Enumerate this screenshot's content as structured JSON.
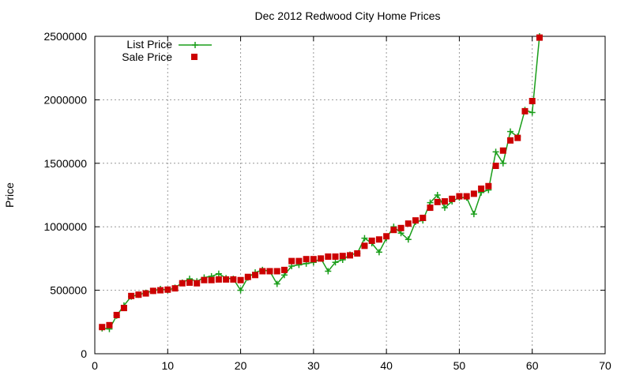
{
  "chart_data": {
    "type": "line",
    "title": "Dec 2012 Redwood City Home Prices",
    "xlabel": "",
    "ylabel": "Price",
    "xlim": [
      0,
      70
    ],
    "ylim": [
      0,
      2500000
    ],
    "xticks": [
      0,
      10,
      20,
      30,
      40,
      50,
      60,
      70
    ],
    "yticks": [
      0,
      500000,
      1000000,
      1500000,
      2000000,
      2500000
    ],
    "grid": true,
    "legend_position": "top-left",
    "colors": {
      "list": "#1a9e1a",
      "sale": "#cc0000",
      "grid": "#999999"
    },
    "series": [
      {
        "name": "List Price",
        "style": "line-plus",
        "x": [
          1,
          2,
          3,
          4,
          5,
          6,
          7,
          8,
          9,
          10,
          11,
          12,
          13,
          14,
          15,
          16,
          17,
          18,
          19,
          20,
          21,
          22,
          23,
          24,
          25,
          26,
          27,
          28,
          29,
          30,
          31,
          32,
          33,
          34,
          35,
          36,
          37,
          38,
          39,
          40,
          41,
          42,
          43,
          44,
          45,
          46,
          47,
          48,
          49,
          50,
          51,
          52,
          53,
          54,
          55,
          56,
          57,
          58,
          59,
          60,
          61
        ],
        "values": [
          200000,
          195000,
          300000,
          380000,
          450000,
          465000,
          480000,
          495000,
          510000,
          500000,
          520000,
          560000,
          590000,
          570000,
          600000,
          610000,
          630000,
          595000,
          590000,
          500000,
          600000,
          640000,
          660000,
          650000,
          550000,
          620000,
          690000,
          700000,
          710000,
          720000,
          750000,
          650000,
          720000,
          740000,
          780000,
          790000,
          910000,
          870000,
          800000,
          910000,
          1000000,
          950000,
          900000,
          1040000,
          1050000,
          1190000,
          1250000,
          1150000,
          1200000,
          1230000,
          1230000,
          1100000,
          1270000,
          1290000,
          1590000,
          1500000,
          1750000,
          1710000,
          1920000,
          1900000,
          2500000
        ]
      },
      {
        "name": "Sale Price",
        "style": "square",
        "x": [
          1,
          2,
          3,
          4,
          5,
          6,
          7,
          8,
          9,
          10,
          11,
          12,
          13,
          14,
          15,
          16,
          17,
          18,
          19,
          20,
          21,
          22,
          23,
          24,
          25,
          26,
          27,
          28,
          29,
          30,
          31,
          32,
          33,
          34,
          35,
          36,
          37,
          38,
          39,
          40,
          41,
          42,
          43,
          44,
          45,
          46,
          47,
          48,
          49,
          50,
          51,
          52,
          53,
          54,
          55,
          56,
          57,
          58,
          59,
          60,
          61
        ],
        "values": [
          210000,
          225000,
          305000,
          360000,
          455000,
          465000,
          475000,
          495000,
          500000,
          505000,
          515000,
          555000,
          560000,
          555000,
          580000,
          580000,
          585000,
          585000,
          585000,
          580000,
          605000,
          620000,
          650000,
          650000,
          650000,
          660000,
          730000,
          730000,
          745000,
          745000,
          750000,
          765000,
          765000,
          770000,
          775000,
          790000,
          850000,
          890000,
          900000,
          925000,
          975000,
          990000,
          1025000,
          1050000,
          1070000,
          1150000,
          1195000,
          1200000,
          1220000,
          1240000,
          1240000,
          1260000,
          1300000,
          1320000,
          1480000,
          1600000,
          1680000,
          1700000,
          1910000,
          1990000,
          2490000
        ]
      }
    ]
  }
}
